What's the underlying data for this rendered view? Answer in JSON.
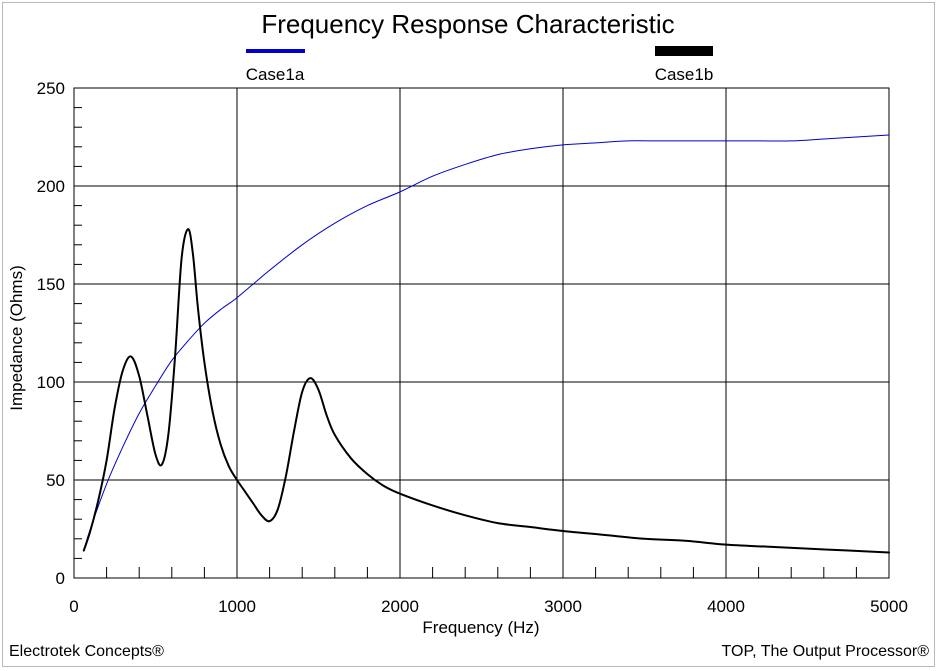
{
  "chart_data": {
    "type": "line",
    "title": "Frequency Response Characteristic",
    "xlabel": "Frequency (Hz)",
    "ylabel": "Impedance (Ohms)",
    "xlim": [
      0,
      5000
    ],
    "ylim": [
      0,
      250
    ],
    "xticks": [
      0,
      1000,
      2000,
      3000,
      4000,
      5000
    ],
    "yticks": [
      0,
      50,
      100,
      150,
      200,
      250
    ],
    "grid": true,
    "legend_position": "top",
    "series": [
      {
        "name": "Case1a",
        "color": "#0000cc",
        "x": [
          60,
          100,
          200,
          300,
          400,
          500,
          600,
          700,
          800,
          900,
          1000,
          1200,
          1400,
          1600,
          1800,
          2000,
          2200,
          2400,
          2600,
          2800,
          3000,
          3200,
          3400,
          3600,
          3800,
          4000,
          4200,
          4400,
          4600,
          4800,
          5000
        ],
        "values": [
          14,
          25,
          48,
          67,
          84,
          98,
          111,
          121,
          130,
          137,
          143,
          157,
          170,
          181,
          190,
          197,
          205,
          211,
          216,
          219,
          221,
          222,
          223,
          223,
          223,
          223,
          223,
          223,
          224,
          225,
          226
        ]
      },
      {
        "name": "Case1b",
        "color": "#000000",
        "x": [
          60,
          100,
          150,
          200,
          250,
          300,
          350,
          400,
          450,
          500,
          540,
          580,
          620,
          660,
          700,
          730,
          760,
          800,
          850,
          900,
          950,
          1000,
          1050,
          1100,
          1150,
          1200,
          1250,
          1300,
          1350,
          1400,
          1450,
          1500,
          1550,
          1600,
          1700,
          1800,
          1900,
          2000,
          2200,
          2400,
          2600,
          2800,
          3000,
          3250,
          3500,
          3750,
          4000,
          4250,
          4500,
          4750,
          5000
        ],
        "values": [
          14,
          24,
          40,
          60,
          87,
          106,
          113,
          103,
          83,
          63,
          58,
          74,
          113,
          163,
          178,
          165,
          138,
          110,
          85,
          68,
          57,
          50,
          44,
          38,
          32,
          29,
          35,
          52,
          75,
          95,
          102,
          96,
          83,
          73,
          61,
          53,
          47,
          43,
          37,
          32,
          28,
          26,
          24,
          22,
          20,
          19,
          17,
          16,
          15,
          14,
          13
        ]
      }
    ]
  },
  "footer": {
    "left": "Electrotek Concepts®",
    "right": "TOP, The Output Processor®"
  }
}
